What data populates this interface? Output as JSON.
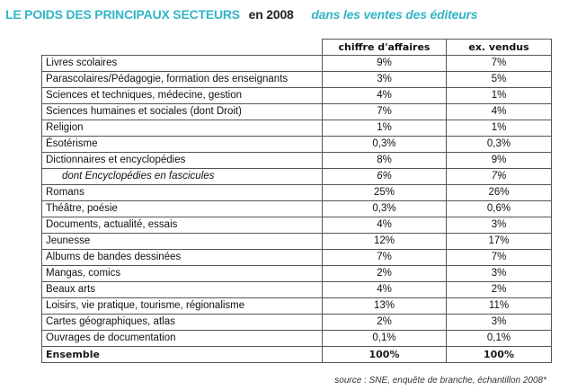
{
  "title": {
    "main": "LE POIDS DES PRINCIPAUX SECTEURS",
    "year": "en 2008",
    "subtitle": "dans les ventes des éditeurs"
  },
  "table": {
    "headers": [
      "",
      "chiffre d'affaires",
      "ex. vendus"
    ],
    "rows": [
      {
        "label": "Livres scolaires",
        "ca": "9%",
        "ex": "7%"
      },
      {
        "label": "Parascolaires/Pédagogie, formation des enseignants",
        "ca": "3%",
        "ex": "5%"
      },
      {
        "label": "Sciences et techniques, médecine, gestion",
        "ca": "4%",
        "ex": "1%"
      },
      {
        "label": "Sciences humaines et sociales (dont Droit)",
        "ca": "7%",
        "ex": "4%"
      },
      {
        "label": "Religion",
        "ca": "1%",
        "ex": "1%"
      },
      {
        "label": "Ésotérisme",
        "ca": "0,3%",
        "ex": "0,3%"
      },
      {
        "label": "Dictionnaires et encyclopédies",
        "ca": "8%",
        "ex": "9%"
      },
      {
        "label": "dont Encyclopédies en fascicules",
        "ca": "6%",
        "ex": "7%"
      },
      {
        "label": "Romans",
        "ca": "25%",
        "ex": "26%"
      },
      {
        "label": "Théâtre, poésie",
        "ca": "0,3%",
        "ex": "0,6%"
      },
      {
        "label": "Documents, actualité, essais",
        "ca": "4%",
        "ex": "3%"
      },
      {
        "label": "Jeunesse",
        "ca": "12%",
        "ex": "17%"
      },
      {
        "label": "Albums de bandes dessinées",
        "ca": "7%",
        "ex": "7%"
      },
      {
        "label": "Mangas, comics",
        "ca": "2%",
        "ex": "3%"
      },
      {
        "label": "Beaux arts",
        "ca": "4%",
        "ex": "2%"
      },
      {
        "label": "Loisirs, vie pratique, tourisme, régionalisme",
        "ca": "13%",
        "ex": "11%"
      },
      {
        "label": "Cartes géographiques, atlas",
        "ca": "2%",
        "ex": "3%"
      },
      {
        "label": "Ouvrages de documentation",
        "ca": "0,1%",
        "ex": "0,1%"
      }
    ],
    "total": {
      "label": "Ensemble",
      "ca": "100%",
      "ex": "100%"
    }
  },
  "source": "source : SNE, enquête de branche, échantillon 2008*",
  "colors": {
    "accent": "#33b5c8",
    "border": "#555555"
  }
}
